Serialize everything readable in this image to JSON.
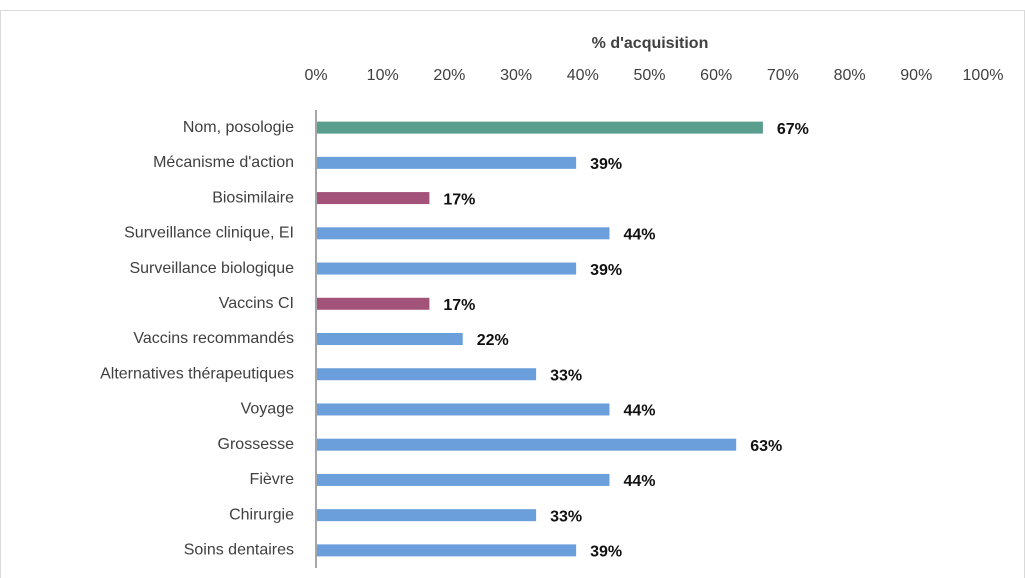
{
  "chart_data": {
    "type": "hbar",
    "x_label": "% d'acquisition",
    "categories": [
      "Nom, posologie",
      "Mécanisme d'action",
      "Biosimilaire",
      "Surveillance clinique, EI",
      "Surveillance biologique",
      "Vaccins CI",
      "Vaccins recommandés",
      "Alternatives thérapeutiques",
      "Voyage",
      "Grossesse",
      "Fièvre",
      "Chirurgie",
      "Soins dentaires"
    ],
    "values": [
      67,
      39,
      17,
      44,
      39,
      17,
      22,
      33,
      44,
      63,
      44,
      33,
      39
    ],
    "value_labels": [
      "67%",
      "39%",
      "17%",
      "44%",
      "39%",
      "17%",
      "22%",
      "33%",
      "44%",
      "63%",
      "44%",
      "33%",
      "39%"
    ],
    "colors": [
      "#5a9e8e",
      "#6a9fdc",
      "#a3527a",
      "#6a9fdc",
      "#6a9fdc",
      "#a3527a",
      "#6a9fdc",
      "#6a9fdc",
      "#6a9fdc",
      "#6a9fdc",
      "#6a9fdc",
      "#6a9fdc",
      "#6a9fdc"
    ],
    "xlim": [
      0,
      100
    ],
    "xticks": [
      {
        "value": 0,
        "label": "0%"
      },
      {
        "value": 10,
        "label": "10%"
      },
      {
        "value": 20,
        "label": "20%"
      },
      {
        "value": 30,
        "label": "30%"
      },
      {
        "value": 40,
        "label": "40%"
      },
      {
        "value": 50,
        "label": "50%"
      },
      {
        "value": 60,
        "label": "60%"
      },
      {
        "value": 70,
        "label": "70%"
      },
      {
        "value": 80,
        "label": "80%"
      },
      {
        "value": 90,
        "label": "90%"
      },
      {
        "value": 100,
        "label": "100%"
      }
    ]
  }
}
